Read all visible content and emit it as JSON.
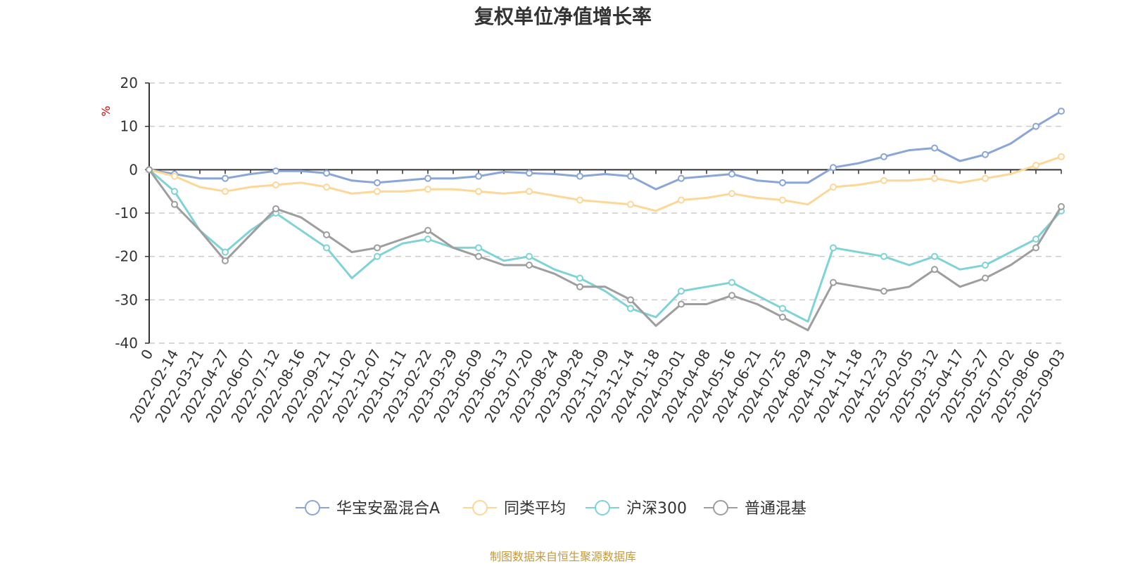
{
  "title": "复权单位净值增长率",
  "source": "制图数据来自恒生聚源数据库",
  "chart_data": {
    "type": "line",
    "title": "复权单位净值增长率",
    "ylabel": "%",
    "ylim": [
      -40,
      20
    ],
    "yticks": [
      20,
      10,
      0,
      -10,
      -20,
      -30,
      -40
    ],
    "grid": true,
    "legend_position": "bottom",
    "x": [
      "0",
      "2022-02-14",
      "2022-03-21",
      "2022-04-27",
      "2022-06-07",
      "2022-07-12",
      "2022-08-16",
      "2022-09-21",
      "2022-11-02",
      "2022-12-07",
      "2023-01-11",
      "2023-02-22",
      "2023-03-29",
      "2023-05-09",
      "2023-06-13",
      "2023-07-20",
      "2023-08-24",
      "2023-09-28",
      "2023-11-09",
      "2023-12-14",
      "2024-01-18",
      "2024-03-01",
      "2024-04-08",
      "2024-05-16",
      "2024-06-21",
      "2024-07-25",
      "2024-08-29",
      "2024-10-14",
      "2024-11-18",
      "2024-12-23",
      "2025-02-05",
      "2025-03-12",
      "2025-04-17",
      "2025-05-27",
      "2025-07-02",
      "2025-08-06",
      "2025-09-03"
    ],
    "series": [
      {
        "name": "华宝安盈混合A",
        "color": "#8aa6d8",
        "values": [
          0,
          -1.0,
          -2.0,
          -2.0,
          -1.0,
          -0.3,
          -0.3,
          -0.8,
          -2.5,
          -3.0,
          -2.5,
          -2.0,
          -2.0,
          -1.5,
          -0.5,
          -0.8,
          -1.0,
          -1.5,
          -1.0,
          -1.5,
          -4.5,
          -2.0,
          -1.5,
          -1.0,
          -2.5,
          -3.0,
          -3.0,
          0.5,
          1.5,
          3.0,
          4.5,
          5.0,
          2.0,
          3.5,
          6.0,
          10.0,
          13.5
        ]
      },
      {
        "name": "同类平均",
        "color": "#fcd796",
        "values": [
          0,
          -1.5,
          -4.0,
          -5.0,
          -4.0,
          -3.5,
          -3.0,
          -4.0,
          -5.5,
          -5.0,
          -5.0,
          -4.5,
          -4.5,
          -5.0,
          -5.5,
          -5.0,
          -6.0,
          -7.0,
          -7.5,
          -8.0,
          -9.5,
          -7.0,
          -6.5,
          -5.5,
          -6.5,
          -7.0,
          -8.0,
          -4.0,
          -3.5,
          -2.5,
          -2.5,
          -2.0,
          -3.0,
          -2.0,
          -1.0,
          1.0,
          3.0
        ]
      },
      {
        "name": "沪深300",
        "color": "#7fd3d6",
        "values": [
          0,
          -5.0,
          -14.0,
          -19.0,
          -14.0,
          -10.0,
          -14.0,
          -18.0,
          -25.0,
          -20.0,
          -17.0,
          -16.0,
          -18.0,
          -18.0,
          -21.0,
          -20.0,
          -23.0,
          -25.0,
          -28.0,
          -32.0,
          -34.0,
          -28.0,
          -27.0,
          -26.0,
          -29.0,
          -32.0,
          -35.0,
          -18.0,
          -19.0,
          -20.0,
          -22.0,
          -20.0,
          -23.0,
          -22.0,
          -19.0,
          -16.0,
          -9.5
        ]
      },
      {
        "name": "普通混基",
        "color": "#9e9e9e",
        "values": [
          0,
          -8.0,
          -14.0,
          -21.0,
          -15.0,
          -9.0,
          -11.0,
          -15.0,
          -19.0,
          -18.0,
          -16.0,
          -14.0,
          -18.0,
          -20.0,
          -22.0,
          -22.0,
          -24.0,
          -27.0,
          -27.0,
          -30.0,
          -36.0,
          -31.0,
          -31.0,
          -29.0,
          -31.0,
          -34.0,
          -37.0,
          -26.0,
          -27.0,
          -28.0,
          -27.0,
          -23.0,
          -27.0,
          -25.0,
          -22.0,
          -18.0,
          -8.5
        ]
      }
    ]
  }
}
